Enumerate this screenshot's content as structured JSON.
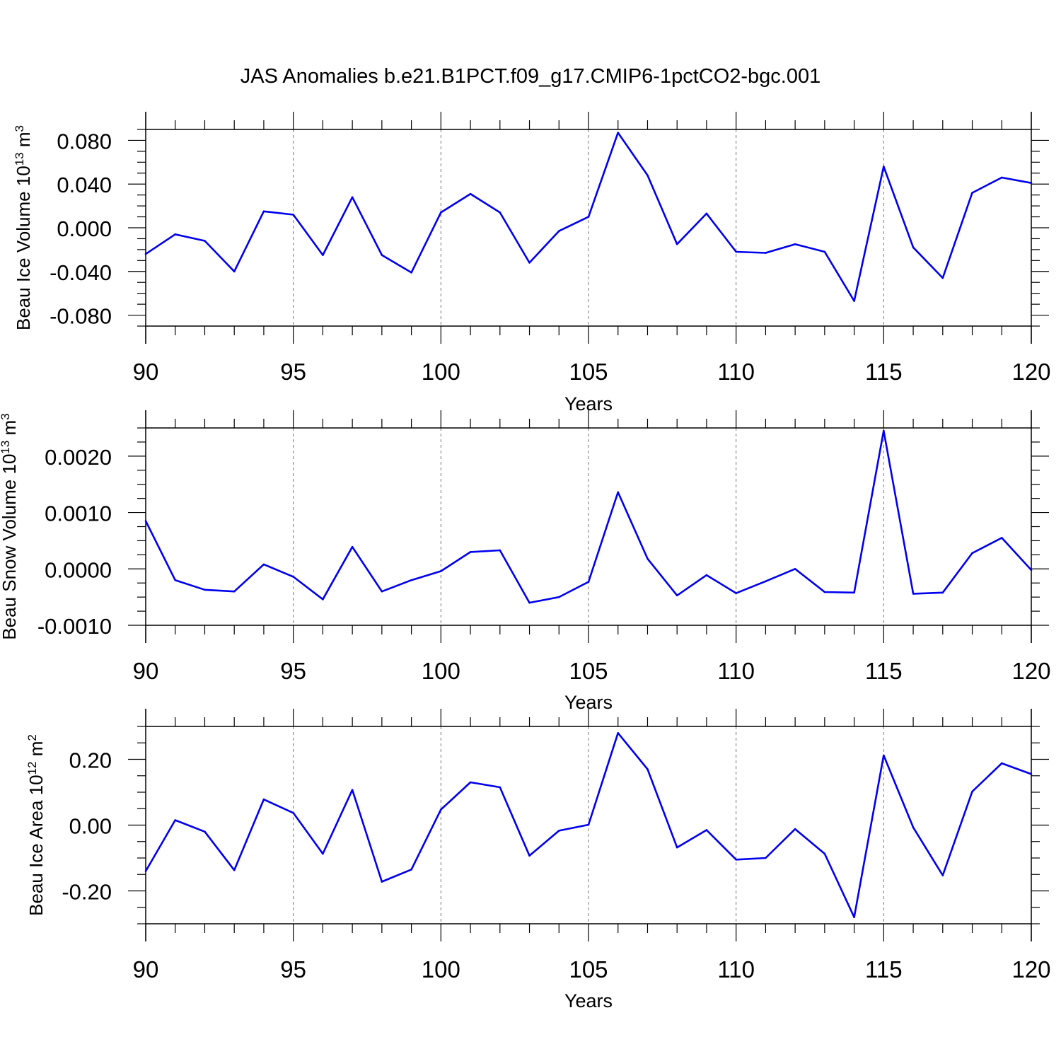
{
  "title": "JAS Anomalies b.e21.B1PCT.f09_g17.CMIP6-1pctCO2-bgc.001",
  "colors": {
    "line": "#0000ee",
    "axis": "#000000",
    "grid": "#777777"
  },
  "chart_data": [
    {
      "type": "line",
      "ylabel": {
        "main": "Beau Ice Volume 10",
        "sup": "13",
        "unit": " m",
        "unit_sup": "3"
      },
      "xlabel": "Years",
      "xlim": [
        90,
        120
      ],
      "ylim": [
        -0.09,
        0.09
      ],
      "x_ticks": [
        "90",
        "95",
        "100",
        "105",
        "110",
        "115",
        "120"
      ],
      "y_ticks": [
        {
          "value": 0.08,
          "label": "0.080"
        },
        {
          "value": 0.04,
          "label": "0.040"
        },
        {
          "value": 0.0,
          "label": "0.000"
        },
        {
          "value": -0.04,
          "label": "-0.040"
        },
        {
          "value": -0.08,
          "label": "-0.080"
        }
      ],
      "grid": "vertical dashed",
      "x": [
        90,
        91,
        92,
        93,
        94,
        95,
        96,
        97,
        98,
        99,
        100,
        101,
        102,
        103,
        104,
        105,
        106,
        107,
        108,
        109,
        110,
        111,
        112,
        113,
        114,
        115,
        116,
        117,
        118,
        119,
        120
      ],
      "values": [
        -0.024,
        -0.006,
        -0.012,
        -0.04,
        0.015,
        0.012,
        -0.025,
        0.028,
        -0.025,
        -0.041,
        0.014,
        0.031,
        0.014,
        -0.032,
        -0.003,
        0.01,
        0.087,
        0.048,
        -0.015,
        0.013,
        -0.022,
        -0.023,
        -0.015,
        -0.022,
        -0.067,
        0.056,
        -0.018,
        -0.046,
        0.032,
        0.046,
        0.041
      ]
    },
    {
      "type": "line",
      "ylabel": {
        "main": "Beau Snow Volume 10",
        "sup": "13",
        "unit": " m",
        "unit_sup": "3"
      },
      "xlabel": "Years",
      "xlim": [
        90,
        120
      ],
      "ylim": [
        -0.001,
        0.0025
      ],
      "x_ticks": [
        "90",
        "95",
        "100",
        "105",
        "110",
        "115",
        "120"
      ],
      "y_ticks": [
        {
          "value": 0.002,
          "label": "0.0020"
        },
        {
          "value": 0.001,
          "label": "0.0010"
        },
        {
          "value": 0.0,
          "label": "0.0000"
        },
        {
          "value": -0.001,
          "label": "-0.0010"
        }
      ],
      "grid": "vertical dashed",
      "x": [
        90,
        91,
        92,
        93,
        94,
        95,
        96,
        97,
        98,
        99,
        100,
        101,
        102,
        103,
        104,
        105,
        106,
        107,
        108,
        109,
        110,
        111,
        112,
        113,
        114,
        115,
        116,
        117,
        118,
        119,
        120
      ],
      "values": [
        0.00085,
        -0.0002,
        -0.00037,
        -0.0004,
        8e-05,
        -0.00014,
        -0.00054,
        0.00039,
        -0.0004,
        -0.0002,
        -4e-05,
        0.0003,
        0.00033,
        -0.0006,
        -0.0005,
        -0.00023,
        0.00136,
        0.00018,
        -0.00047,
        -0.00011,
        -0.00043,
        -0.00022,
        0.0,
        -0.00041,
        -0.00042,
        0.00245,
        -0.00044,
        -0.00042,
        0.00028,
        0.00055,
        -2e-05
      ]
    },
    {
      "type": "line",
      "ylabel": {
        "main": "Beau Ice Area 10",
        "sup": "12",
        "unit": " m",
        "unit_sup": "2"
      },
      "xlabel": "Years",
      "xlim": [
        90,
        120
      ],
      "ylim": [
        -0.3,
        0.3
      ],
      "x_ticks": [
        "90",
        "95",
        "100",
        "105",
        "110",
        "115",
        "120"
      ],
      "y_ticks": [
        {
          "value": 0.2,
          "label": "0.20"
        },
        {
          "value": 0.0,
          "label": "0.00"
        },
        {
          "value": -0.2,
          "label": "-0.20"
        }
      ],
      "grid": "vertical dashed",
      "x": [
        90,
        91,
        92,
        93,
        94,
        95,
        96,
        97,
        98,
        99,
        100,
        101,
        102,
        103,
        104,
        105,
        106,
        107,
        108,
        109,
        110,
        111,
        112,
        113,
        114,
        115,
        116,
        117,
        118,
        119,
        120
      ],
      "values": [
        -0.14,
        0.015,
        -0.02,
        -0.137,
        0.078,
        0.037,
        -0.087,
        0.107,
        -0.172,
        -0.135,
        0.047,
        0.13,
        0.115,
        -0.093,
        -0.017,
        0.001,
        0.28,
        0.17,
        -0.068,
        -0.015,
        -0.105,
        -0.1,
        -0.012,
        -0.087,
        -0.28,
        0.212,
        -0.007,
        -0.153,
        0.102,
        0.188,
        0.155
      ]
    }
  ]
}
